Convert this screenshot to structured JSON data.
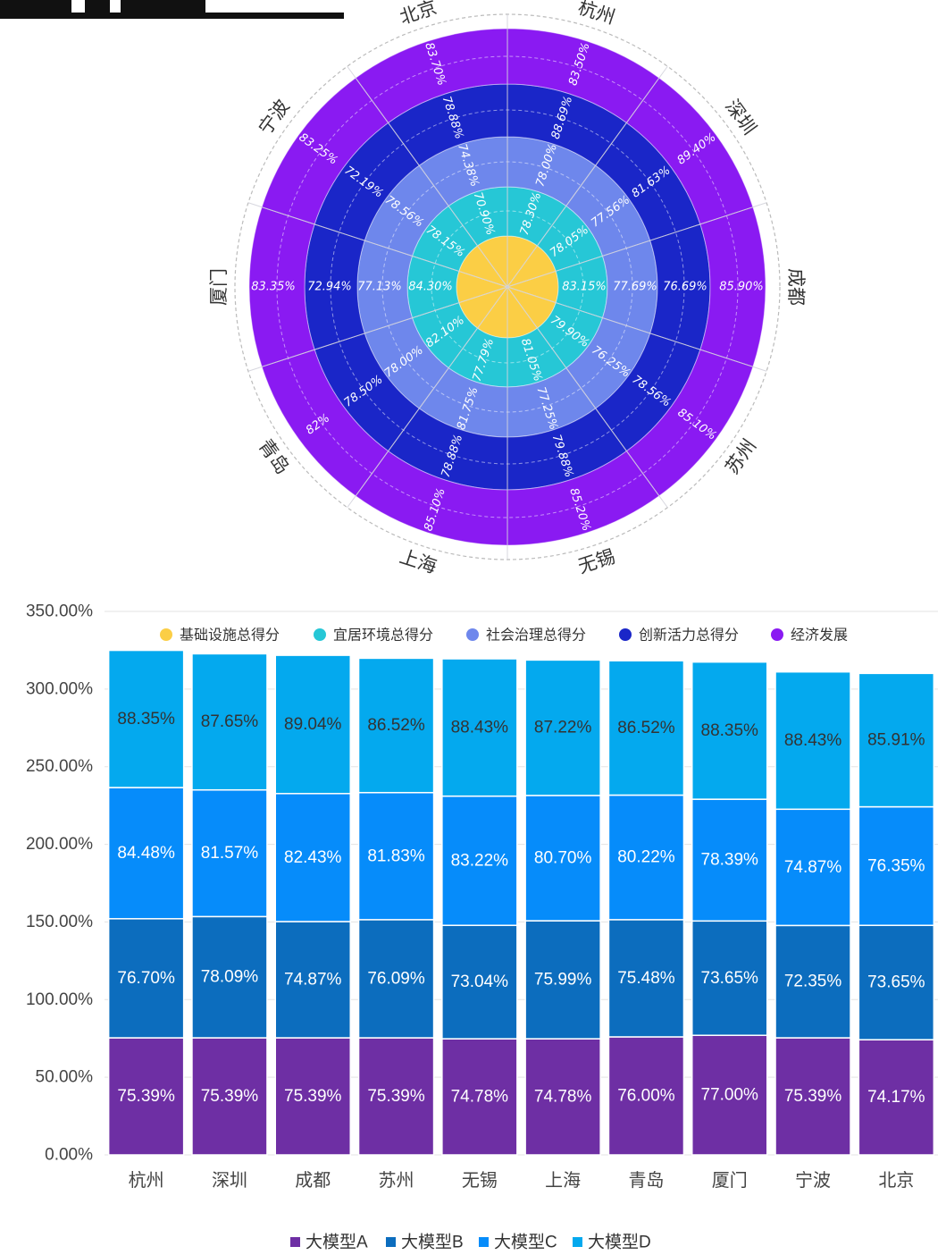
{
  "chart_data": [
    {
      "type": "polar-bar",
      "categories": [
        "杭州",
        "深圳",
        "成都",
        "苏州",
        "无锡",
        "上海",
        "青岛",
        "厦门",
        "宁波",
        "北京"
      ],
      "legend": [
        "基础设施总得分",
        "宜居环境总得分",
        "社会治理总得分",
        "创新活力总得分",
        "经济发展"
      ],
      "colors": [
        "#FBCE45",
        "#26C7D6",
        "#6E87EC",
        "#1A26C8",
        "#8A1AF2"
      ],
      "series": [
        {
          "name": "基础设施总得分",
          "labels": [
            "",
            "",
            "",
            "",
            "",
            "",
            "",
            "",
            "",
            ""
          ]
        },
        {
          "name": "宜居环境总得分",
          "labels": [
            "78.30%",
            "78.05%",
            "83.15%",
            "79.90%",
            "81.05%",
            "77.79%",
            "82.10%",
            "84.30%",
            "78.15%",
            "70.90%"
          ]
        },
        {
          "name": "社会治理总得分",
          "labels": [
            "78.00%",
            "77.56%",
            "77.69%",
            "76.25%",
            "77.25%",
            "81.75%",
            "78.00%",
            "77.13%",
            "78.56%",
            "74.38%"
          ]
        },
        {
          "name": "创新活力总得分",
          "labels": [
            "88.69%",
            "81.63%",
            "76.69%",
            "78.56%",
            "79.88%",
            "78.88%",
            "78.50%",
            "72.94%",
            "72.19%",
            "78.88%"
          ]
        },
        {
          "name": "经济发展",
          "labels": [
            "83.50%",
            "89.40%",
            "85.90%",
            "85.10%",
            "85.20%",
            "85.10%",
            "82%",
            "83.35%",
            "83.25%",
            "83.70%"
          ]
        }
      ]
    },
    {
      "type": "bar",
      "stacked": true,
      "categories": [
        "杭州",
        "深圳",
        "成都",
        "苏州",
        "无锡",
        "上海",
        "青岛",
        "厦门",
        "宁波",
        "北京"
      ],
      "ylim": [
        0,
        350
      ],
      "yticks": [
        "0.00%",
        "50.00%",
        "100.00%",
        "150.00%",
        "200.00%",
        "250.00%",
        "300.00%",
        "350.00%"
      ],
      "legend_position": "bottom",
      "series": [
        {
          "name": "大模型A",
          "color": "#6E2FA4",
          "values": [
            75.39,
            75.39,
            75.39,
            75.39,
            74.78,
            74.78,
            76.0,
            77.0,
            75.39,
            74.17
          ],
          "labels": [
            "75.39%",
            "75.39%",
            "75.39%",
            "75.39%",
            "74.78%",
            "74.78%",
            "76.00%",
            "77.00%",
            "75.39%",
            "74.17%"
          ]
        },
        {
          "name": "大模型B",
          "color": "#0C6DBE",
          "values": [
            76.7,
            78.09,
            74.87,
            76.09,
            73.04,
            75.99,
            75.48,
            73.65,
            72.35,
            73.65
          ],
          "labels": [
            "76.70%",
            "78.09%",
            "74.87%",
            "76.09%",
            "73.04%",
            "75.99%",
            "75.48%",
            "73.65%",
            "72.35%",
            "73.65%"
          ]
        },
        {
          "name": "大模型C",
          "color": "#068CFA",
          "values": [
            84.48,
            81.57,
            82.43,
            81.83,
            83.22,
            80.7,
            80.22,
            78.39,
            74.87,
            76.35
          ],
          "labels": [
            "84.48%",
            "81.57%",
            "82.43%",
            "81.83%",
            "83.22%",
            "80.70%",
            "80.22%",
            "78.39%",
            "74.87%",
            "76.35%"
          ]
        },
        {
          "name": "大模型D",
          "color": "#04A9EE",
          "values": [
            88.35,
            87.65,
            89.04,
            86.52,
            88.43,
            87.22,
            86.52,
            88.35,
            88.43,
            85.91
          ],
          "labels": [
            "88.35%",
            "87.65%",
            "89.04%",
            "86.52%",
            "88.43%",
            "87.22%",
            "86.52%",
            "88.35%",
            "88.43%",
            "85.91%"
          ]
        }
      ]
    }
  ]
}
